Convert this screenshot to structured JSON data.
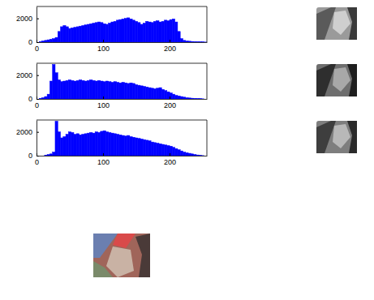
{
  "chart_data": [
    {
      "type": "histogram",
      "bins": [
        0,
        4,
        8,
        12,
        16,
        20,
        24,
        28,
        32,
        36,
        40,
        44,
        48,
        52,
        56,
        60,
        64,
        68,
        72,
        76,
        80,
        84,
        88,
        92,
        96,
        100,
        104,
        108,
        112,
        116,
        120,
        124,
        128,
        132,
        136,
        140,
        144,
        148,
        152,
        156,
        160,
        164,
        168,
        172,
        176,
        180,
        184,
        188,
        192,
        196,
        200,
        204,
        208,
        212,
        216,
        220,
        224,
        228,
        232,
        236,
        240,
        244,
        248,
        252,
        256
      ],
      "values": [
        0,
        50,
        100,
        150,
        200,
        250,
        300,
        400,
        900,
        1300,
        1400,
        1300,
        1150,
        1200,
        1250,
        1300,
        1350,
        1400,
        1450,
        1500,
        1550,
        1600,
        1650,
        1700,
        1650,
        1550,
        1500,
        1600,
        1700,
        1750,
        1850,
        1900,
        1950,
        2000,
        2050,
        1950,
        1850,
        1750,
        1650,
        1500,
        1600,
        1750,
        1700,
        1650,
        1750,
        1800,
        1700,
        1750,
        1850,
        1800,
        1900,
        1950,
        1700,
        900,
        300,
        150,
        100,
        80,
        60,
        50,
        40,
        30,
        20,
        10
      ],
      "color": "#0000ff",
      "xlim": [
        0,
        256
      ],
      "ylim": [
        0,
        3000
      ],
      "xticks": [
        0,
        100,
        200
      ],
      "yticks": [
        0,
        2000
      ]
    },
    {
      "type": "histogram",
      "bins": [
        0,
        4,
        8,
        12,
        16,
        20,
        24,
        28,
        32,
        36,
        40,
        44,
        48,
        52,
        56,
        60,
        64,
        68,
        72,
        76,
        80,
        84,
        88,
        92,
        96,
        100,
        104,
        108,
        112,
        116,
        120,
        124,
        128,
        132,
        136,
        140,
        144,
        148,
        152,
        156,
        160,
        164,
        168,
        172,
        176,
        180,
        184,
        188,
        192,
        196,
        200,
        204,
        208,
        212,
        216,
        220,
        224,
        228,
        232,
        236,
        240,
        244,
        248,
        252,
        256
      ],
      "values": [
        0,
        50,
        100,
        200,
        400,
        1500,
        2900,
        2200,
        1600,
        1450,
        1500,
        1550,
        1600,
        1550,
        1500,
        1550,
        1600,
        1550,
        1500,
        1550,
        1600,
        1550,
        1500,
        1550,
        1500,
        1450,
        1500,
        1450,
        1400,
        1450,
        1400,
        1350,
        1400,
        1350,
        1300,
        1350,
        1300,
        1200,
        1150,
        1100,
        1050,
        1000,
        950,
        900,
        850,
        900,
        950,
        800,
        700,
        600,
        500,
        400,
        300,
        250,
        200,
        150,
        100,
        80,
        60,
        40,
        30,
        20,
        10,
        0
      ],
      "color": "#0000ff",
      "xlim": [
        0,
        256
      ],
      "ylim": [
        0,
        3000
      ],
      "xticks": [
        0,
        100,
        200
      ],
      "yticks": [
        0,
        2000
      ]
    },
    {
      "type": "histogram",
      "bins": [
        0,
        4,
        8,
        12,
        16,
        20,
        24,
        28,
        32,
        36,
        40,
        44,
        48,
        52,
        56,
        60,
        64,
        68,
        72,
        76,
        80,
        84,
        88,
        92,
        96,
        100,
        104,
        108,
        112,
        116,
        120,
        124,
        128,
        132,
        136,
        140,
        144,
        148,
        152,
        156,
        160,
        164,
        168,
        172,
        176,
        180,
        184,
        188,
        192,
        196,
        200,
        204,
        208,
        212,
        216,
        220,
        224,
        228,
        232,
        236,
        240,
        244,
        248,
        252,
        256
      ],
      "values": [
        0,
        0,
        0,
        50,
        100,
        150,
        300,
        2900,
        2000,
        1500,
        1600,
        1800,
        2000,
        1950,
        1800,
        1850,
        1750,
        1800,
        1850,
        1900,
        1950,
        1900,
        2000,
        1950,
        2050,
        2100,
        2000,
        1950,
        1900,
        1850,
        1800,
        1750,
        1700,
        1650,
        1700,
        1600,
        1550,
        1500,
        1450,
        1400,
        1350,
        1300,
        1250,
        1150,
        1100,
        1050,
        1000,
        950,
        900,
        850,
        800,
        700,
        600,
        500,
        400,
        300,
        250,
        200,
        150,
        100,
        60,
        30,
        10,
        0
      ],
      "color": "#0000ff",
      "xlim": [
        0,
        256
      ],
      "ylim": [
        0,
        3000
      ],
      "xticks": [
        0,
        100,
        200
      ],
      "yticks": [
        0,
        2000
      ]
    }
  ]
}
